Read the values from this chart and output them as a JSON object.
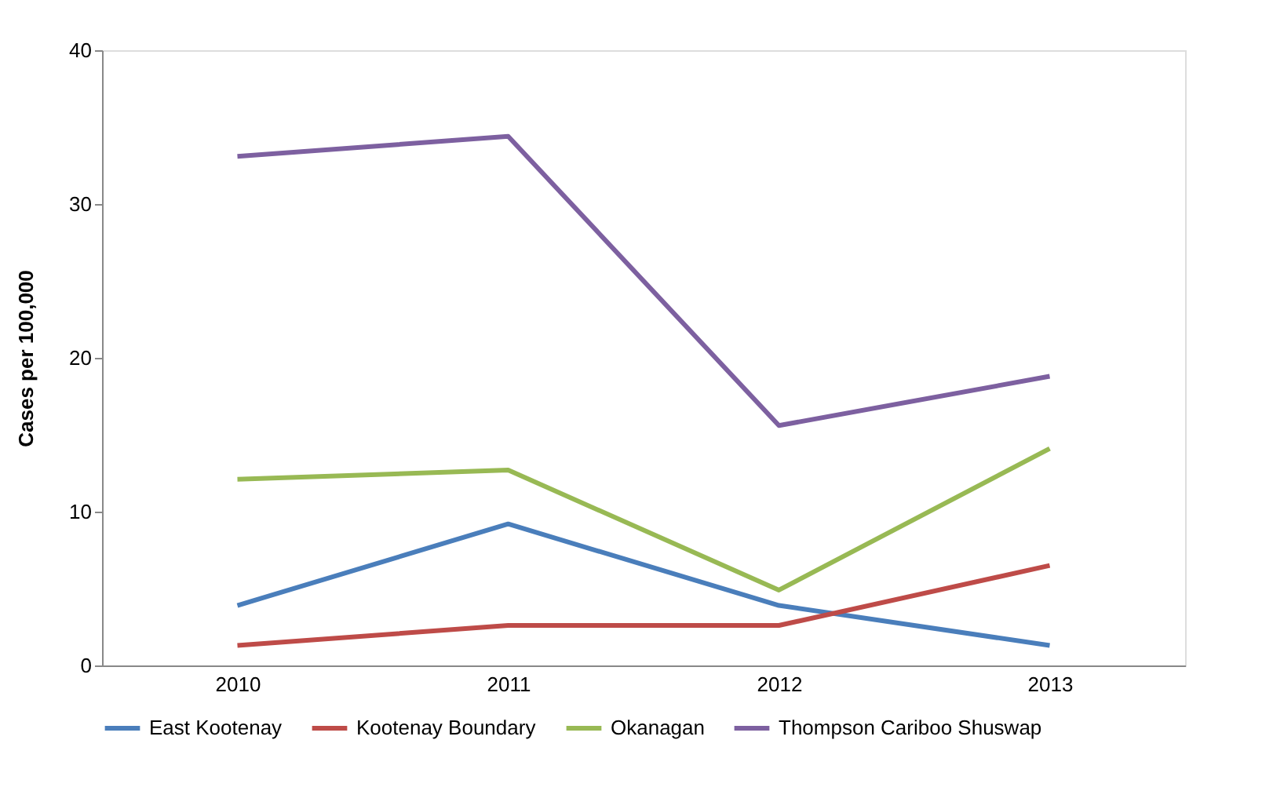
{
  "chart_data": {
    "type": "line",
    "ylabel": "Cases per 100,000",
    "categories": [
      "2010",
      "2011",
      "2012",
      "2013"
    ],
    "series": [
      {
        "name": "East Kootenay",
        "color": "#4a7ebb",
        "values": [
          3.9,
          9.2,
          3.9,
          1.3
        ]
      },
      {
        "name": "Kootenay Boundary",
        "color": "#be4b48",
        "values": [
          1.3,
          2.6,
          2.6,
          6.5
        ]
      },
      {
        "name": "Okanagan",
        "color": "#98b954",
        "values": [
          12.1,
          12.7,
          4.9,
          14.1
        ]
      },
      {
        "name": "Thompson Cariboo Shuswap",
        "color": "#7d60a0",
        "values": [
          33.1,
          34.4,
          15.6,
          18.8
        ]
      }
    ],
    "ylim": [
      0,
      40
    ],
    "yticks": [
      0,
      10,
      20,
      30,
      40
    ],
    "grid": false,
    "legend": "bottom",
    "marker": "none",
    "line_style": "solid"
  }
}
